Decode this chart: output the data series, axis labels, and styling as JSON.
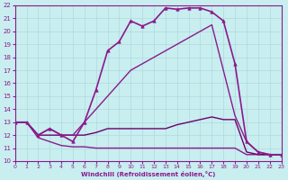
{
  "xlabel": "Windchill (Refroidissement éolien,°C)",
  "xlim": [
    0,
    23
  ],
  "ylim": [
    10,
    22
  ],
  "xticks": [
    0,
    1,
    2,
    3,
    4,
    5,
    6,
    7,
    8,
    9,
    10,
    11,
    12,
    13,
    14,
    15,
    16,
    17,
    18,
    19,
    20,
    21,
    22,
    23
  ],
  "yticks": [
    10,
    11,
    12,
    13,
    14,
    15,
    16,
    17,
    18,
    19,
    20,
    21,
    22
  ],
  "bg_color": "#c8eef0",
  "grid_color": "#b0d8dc",
  "line_color": "#8b1a8b",
  "curves": [
    {
      "x": [
        0,
        1,
        2,
        3,
        4,
        5,
        6,
        7,
        8,
        9,
        10,
        11,
        12,
        13,
        14,
        15,
        16,
        17,
        18,
        19,
        20,
        21,
        22,
        23
      ],
      "y": [
        13,
        13,
        11.8,
        11.5,
        11.2,
        11.1,
        11.1,
        11.0,
        11.0,
        11.0,
        11.0,
        11.0,
        11.0,
        11.0,
        11.0,
        11.0,
        11.0,
        11.0,
        11.0,
        11.0,
        10.5,
        10.5,
        10.5,
        10.5
      ],
      "marker": null,
      "lw": 1.0,
      "color": "#8b1a8b"
    },
    {
      "x": [
        0,
        1,
        2,
        3,
        4,
        5,
        6,
        7,
        8,
        9,
        10,
        11,
        12,
        13,
        14,
        15,
        16,
        17,
        18,
        19,
        20,
        21,
        22,
        23
      ],
      "y": [
        13,
        13,
        12,
        12,
        12,
        12,
        12,
        12.2,
        12.5,
        12.5,
        12.5,
        12.5,
        12.5,
        12.5,
        12.8,
        13.0,
        13.2,
        13.4,
        13.2,
        13.2,
        10.7,
        10.5,
        10.5,
        10.5
      ],
      "marker": null,
      "lw": 1.0,
      "color": "#6b006b"
    },
    {
      "x": [
        0,
        1,
        2,
        3,
        4,
        5,
        6,
        7,
        8,
        9,
        10,
        11,
        12,
        13,
        14,
        15,
        16,
        17,
        18,
        19,
        20,
        21,
        22,
        23
      ],
      "y": [
        13,
        13,
        12,
        12.5,
        12,
        12,
        13,
        14,
        15,
        16,
        17,
        17.5,
        18,
        18.5,
        19,
        19.5,
        20,
        20.5,
        17.0,
        13.5,
        11.5,
        10.7,
        10.5,
        10.5
      ],
      "marker": null,
      "lw": 1.0,
      "color": "#8b1a8b"
    },
    {
      "x": [
        0,
        1,
        2,
        3,
        4,
        5,
        6,
        7,
        8,
        9,
        10,
        11,
        12,
        13,
        14,
        15,
        16,
        17,
        18,
        19,
        20,
        21,
        22,
        23
      ],
      "y": [
        13,
        13,
        12,
        12.5,
        12,
        11.5,
        13,
        15.5,
        18.5,
        19.2,
        20.8,
        20.4,
        20.8,
        21.8,
        21.7,
        21.8,
        21.8,
        21.5,
        20.8,
        17.5,
        11.5,
        10.7,
        10.5,
        10.5
      ],
      "marker": "^",
      "lw": 1.2,
      "color": "#8b1a8b"
    }
  ]
}
